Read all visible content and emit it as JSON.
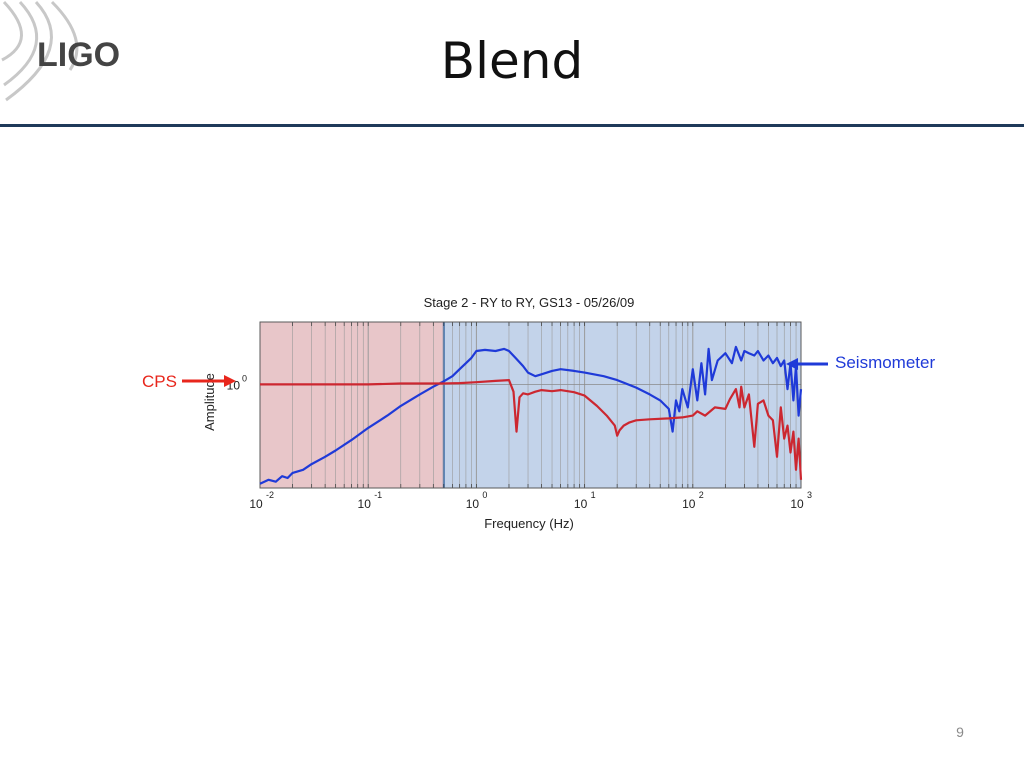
{
  "slide": {
    "title": "Blend",
    "page_number": "9",
    "logo_text": "LIGO"
  },
  "colors": {
    "cps_red": "#e8261c",
    "seismometer_blue": "#1f3ad8",
    "cps_region": "#e8c6c9",
    "seismometer_region": "#c3d3ea",
    "title_rule": "#1f3a5a"
  },
  "annotations": {
    "cps": "CPS",
    "seismometer": "Seismometer"
  },
  "chart_data": {
    "type": "line",
    "title": "Stage 2 - RY to RY, GS13 - 05/26/09",
    "xlabel": "Frequency (Hz)",
    "ylabel": "Amplitude",
    "x_scale": "log",
    "y_scale": "log",
    "xlim": [
      0.01,
      1000
    ],
    "ylim": [
      0.1,
      4
    ],
    "x_ticks": [
      {
        "base": "10",
        "exp": "-2",
        "value": 0.01
      },
      {
        "base": "10",
        "exp": "-1",
        "value": 0.1
      },
      {
        "base": "10",
        "exp": "0",
        "value": 1
      },
      {
        "base": "10",
        "exp": "1",
        "value": 10
      },
      {
        "base": "10",
        "exp": "2",
        "value": 100
      },
      {
        "base": "10",
        "exp": "3",
        "value": 1000
      }
    ],
    "y_ticks": [
      {
        "base": "10",
        "exp": "0",
        "value": 1
      }
    ],
    "regions": [
      {
        "label": "CPS",
        "x_from": 0.01,
        "x_to": 0.5,
        "color": "#e8c6c9"
      },
      {
        "label": "Seismometer",
        "x_from": 0.5,
        "x_to": 1000,
        "color": "#c3d3ea"
      }
    ],
    "series": [
      {
        "color": "#1f3ad8",
        "x": [
          0.01,
          0.012,
          0.014,
          0.016,
          0.018,
          0.02,
          0.025,
          0.03,
          0.04,
          0.05,
          0.07,
          0.1,
          0.15,
          0.2,
          0.3,
          0.4,
          0.5,
          0.6,
          0.7,
          0.8,
          0.9,
          1.0,
          1.2,
          1.5,
          1.8,
          2.0,
          2.3,
          2.7,
          3.0,
          3.5,
          4.0,
          5.0,
          6.0,
          8.0,
          10,
          15,
          20,
          30,
          40,
          50,
          60,
          65,
          70,
          75,
          80,
          90,
          100,
          110,
          120,
          130,
          140,
          150,
          170,
          200,
          230,
          250,
          280,
          300,
          330,
          370,
          400,
          450,
          500,
          550,
          600,
          650,
          700,
          750,
          800,
          850,
          900,
          950,
          1000
        ],
        "y": [
          0.11,
          0.12,
          0.115,
          0.13,
          0.125,
          0.14,
          0.15,
          0.17,
          0.2,
          0.23,
          0.29,
          0.38,
          0.5,
          0.62,
          0.8,
          0.95,
          1.07,
          1.2,
          1.4,
          1.6,
          1.8,
          2.1,
          2.15,
          2.1,
          2.2,
          2.1,
          1.8,
          1.5,
          1.3,
          1.2,
          1.25,
          1.35,
          1.4,
          1.35,
          1.3,
          1.2,
          1.1,
          0.93,
          0.8,
          0.7,
          0.58,
          0.35,
          0.7,
          0.55,
          0.9,
          0.6,
          1.4,
          0.7,
          1.6,
          0.8,
          2.2,
          1.1,
          1.7,
          2.0,
          1.6,
          2.3,
          1.7,
          2.1,
          2.0,
          1.9,
          2.1,
          1.7,
          1.9,
          1.6,
          1.8,
          1.5,
          1.7,
          0.9,
          1.6,
          0.7,
          1.5,
          0.5,
          0.9
        ]
      },
      {
        "color": "#cc2730",
        "x": [
          0.01,
          0.05,
          0.1,
          0.2,
          0.3,
          0.4,
          0.5,
          0.7,
          1.0,
          1.5,
          2.0,
          2.2,
          2.35,
          2.5,
          2.7,
          3.0,
          3.5,
          4.0,
          5.0,
          6.0,
          8.0,
          10,
          13,
          16,
          19,
          20,
          21,
          23,
          26,
          30,
          40,
          60,
          80,
          100,
          110,
          130,
          160,
          200,
          220,
          250,
          270,
          280,
          300,
          330,
          370,
          400,
          450,
          500,
          550,
          600,
          650,
          700,
          750,
          800,
          850,
          900,
          950,
          1000
        ],
        "y": [
          1.0,
          1.0,
          1.0,
          1.02,
          1.02,
          1.02,
          1.02,
          1.03,
          1.05,
          1.08,
          1.1,
          0.85,
          0.35,
          0.75,
          0.82,
          0.8,
          0.85,
          0.88,
          0.86,
          0.88,
          0.84,
          0.78,
          0.62,
          0.5,
          0.4,
          0.32,
          0.36,
          0.4,
          0.43,
          0.45,
          0.46,
          0.47,
          0.48,
          0.5,
          0.55,
          0.5,
          0.6,
          0.58,
          0.72,
          0.9,
          0.6,
          0.95,
          0.6,
          0.8,
          0.25,
          0.65,
          0.7,
          0.5,
          0.45,
          0.2,
          0.6,
          0.3,
          0.4,
          0.22,
          0.35,
          0.15,
          0.3,
          0.12
        ]
      }
    ]
  }
}
